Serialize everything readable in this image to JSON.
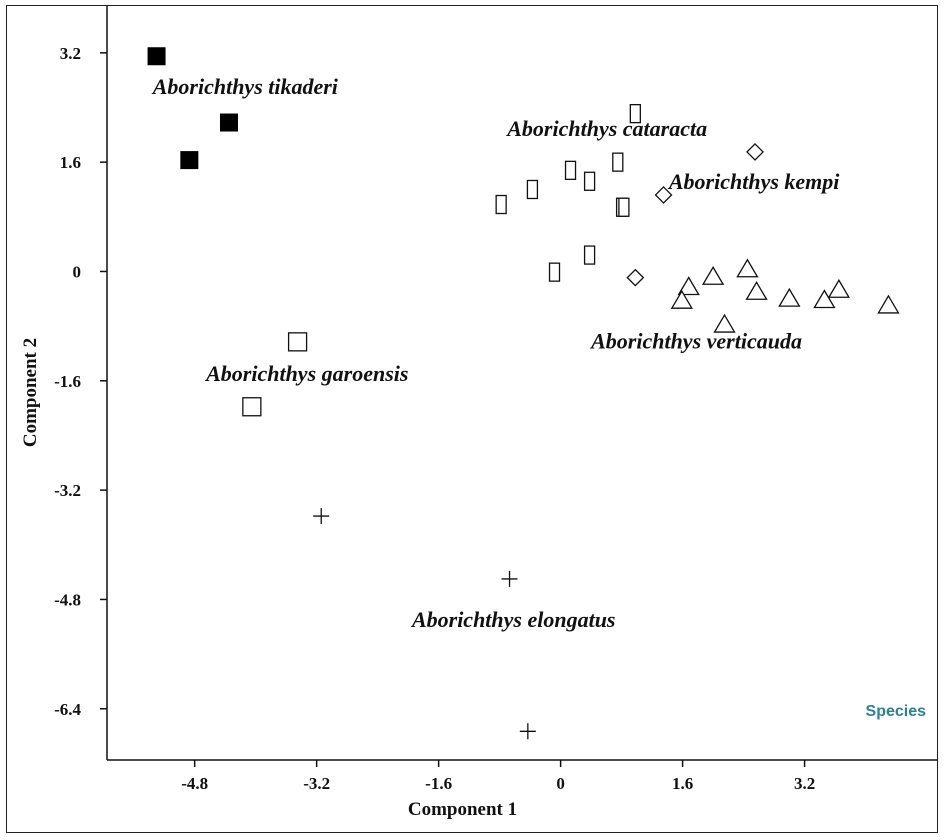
{
  "chart_data": {
    "type": "scatter",
    "xlabel": "Component 1",
    "ylabel": "Component 2",
    "x_ticks": [
      -4.8,
      -3.2,
      -1.6,
      0,
      1.6,
      3.2
    ],
    "y_ticks": [
      3.2,
      1.6,
      0,
      -1.6,
      -3.2,
      -4.8,
      -6.4
    ],
    "xlim": [
      -5.95,
      4.95
    ],
    "ylim": [
      -7.15,
      3.9
    ],
    "grid": false,
    "legend_label": "Species",
    "legend_color": "#2f7f96",
    "series": [
      {
        "marker": "filled-square",
        "points": [
          [
            -5.3,
            3.15
          ],
          [
            -4.35,
            2.18
          ],
          [
            -4.87,
            1.63
          ]
        ]
      },
      {
        "marker": "square",
        "points": [
          [
            -3.45,
            -1.03
          ],
          [
            -4.05,
            -1.98
          ]
        ]
      },
      {
        "marker": "rectangle",
        "points": [
          [
            0.98,
            2.31
          ],
          [
            0.13,
            1.48
          ],
          [
            0.75,
            1.6
          ],
          [
            -0.37,
            1.2
          ],
          [
            0.38,
            1.32
          ],
          [
            -0.78,
            0.98
          ],
          [
            0.8,
            0.94
          ],
          [
            0.83,
            0.94
          ],
          [
            0.38,
            0.24
          ],
          [
            -0.08,
            -0.01
          ]
        ]
      },
      {
        "marker": "diamond",
        "points": [
          [
            2.55,
            1.75
          ],
          [
            1.35,
            1.12
          ],
          [
            0.98,
            -0.09
          ]
        ]
      },
      {
        "marker": "triangle",
        "points": [
          [
            2.45,
            0.04
          ],
          [
            2.0,
            -0.07
          ],
          [
            1.68,
            -0.22
          ],
          [
            1.59,
            -0.42
          ],
          [
            2.57,
            -0.29
          ],
          [
            3.0,
            -0.39
          ],
          [
            3.46,
            -0.41
          ],
          [
            3.65,
            -0.26
          ],
          [
            4.3,
            -0.49
          ],
          [
            2.15,
            -0.77
          ]
        ]
      },
      {
        "marker": "plus",
        "points": [
          [
            -3.14,
            -3.58
          ],
          [
            -0.67,
            -4.5
          ],
          [
            -0.43,
            -6.73
          ]
        ]
      }
    ],
    "annotations": [
      {
        "text": "Aborichthys tikaderi",
        "x": -5.35,
        "y": 2.6
      },
      {
        "text": "Aborichthys cataracta",
        "x": -0.7,
        "y": 1.98
      },
      {
        "text": "Aborichthys kempi",
        "x": 1.42,
        "y": 1.21
      },
      {
        "text": "Aborichthys verticauda",
        "x": 0.4,
        "y": -1.13
      },
      {
        "text": "Aborichthys garoensis",
        "x": -4.65,
        "y": -1.6
      },
      {
        "text": "Aborichthys elongatus",
        "x": -1.95,
        "y": -5.2
      }
    ]
  }
}
